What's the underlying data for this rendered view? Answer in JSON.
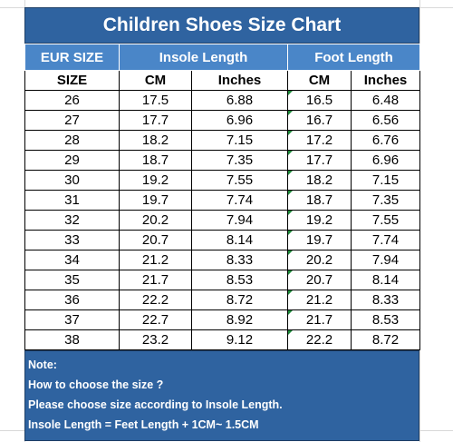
{
  "title": "Children Shoes Size Chart",
  "group_headers": {
    "eur": "EUR SIZE",
    "insole": "Insole Length",
    "foot": "Foot Length"
  },
  "sub_headers": {
    "size": "SIZE",
    "insole_cm": "CM",
    "insole_in": "Inches",
    "foot_cm": "CM",
    "foot_in": "Inches"
  },
  "rows": [
    [
      "26",
      "17.5",
      "6.88",
      "16.5",
      "6.48"
    ],
    [
      "27",
      "17.7",
      "6.96",
      "16.7",
      "6.56"
    ],
    [
      "28",
      "18.2",
      "7.15",
      "17.2",
      "6.76"
    ],
    [
      "29",
      "18.7",
      "7.35",
      "17.7",
      "6.96"
    ],
    [
      "30",
      "19.2",
      "7.55",
      "18.2",
      "7.15"
    ],
    [
      "31",
      "19.7",
      "7.74",
      "18.7",
      "7.35"
    ],
    [
      "32",
      "20.2",
      "7.94",
      "19.2",
      "7.55"
    ],
    [
      "33",
      "20.7",
      "8.14",
      "19.7",
      "7.74"
    ],
    [
      "34",
      "21.2",
      "8.33",
      "20.2",
      "7.94"
    ],
    [
      "35",
      "21.7",
      "8.53",
      "20.7",
      "8.14"
    ],
    [
      "36",
      "22.2",
      "8.72",
      "21.2",
      "8.33"
    ],
    [
      "37",
      "22.7",
      "8.92",
      "21.7",
      "8.53"
    ],
    [
      "38",
      "23.2",
      "9.12",
      "22.2",
      "8.72"
    ]
  ],
  "notes": [
    "Note:",
    "How to choose the size ?",
    "Please choose size according to Insole Length.",
    "Insole Length = Feet Length + 1CM~ 1.5CM"
  ],
  "colors": {
    "title_bg": "#2f63a0",
    "header_bg": "#4a86c8",
    "note_bg": "#2f63a0"
  }
}
